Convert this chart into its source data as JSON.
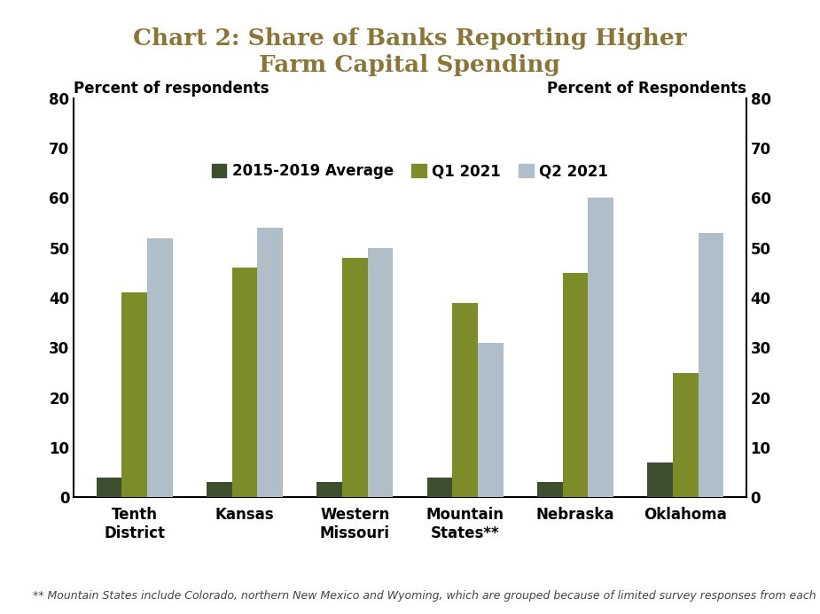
{
  "title": "Chart 2: Share of Banks Reporting Higher\nFarm Capital Spending",
  "title_color": "#8B7536",
  "ylabel_left": "Percent of respondents",
  "ylabel_right": "Percent of Respondents",
  "categories": [
    "Tenth\nDistrict",
    "Kansas",
    "Western\nMissouri",
    "Mountain\nStates**",
    "Nebraska",
    "Oklahoma"
  ],
  "series": {
    "2015-2019 Average": [
      4,
      3,
      3,
      4,
      3,
      7
    ],
    "Q1 2021": [
      41,
      46,
      48,
      39,
      45,
      25
    ],
    "Q2 2021": [
      52,
      54,
      50,
      31,
      60,
      53
    ]
  },
  "colors": {
    "2015-2019 Average": "#3d4f2e",
    "Q1 2021": "#7d8c28",
    "Q2 2021": "#b0bec9"
  },
  "ylim": [
    0,
    80
  ],
  "yticks": [
    0,
    10,
    20,
    30,
    40,
    50,
    60,
    70,
    80
  ],
  "legend_labels": [
    "2015-2019 Average",
    "Q1 2021",
    "Q2 2021"
  ],
  "footnote": "** Mountain States include Colorado, northern New Mexico and Wyoming, which are grouped because of limited survey responses from each state.",
  "background_color": "#ffffff"
}
